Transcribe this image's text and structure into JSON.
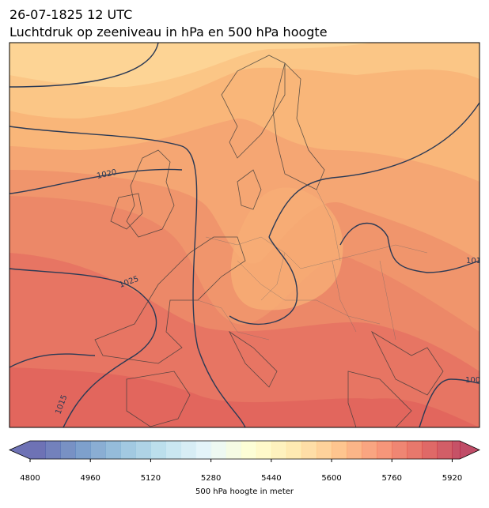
{
  "title": "26-07-1825 12 UTC",
  "subtitle": "Luchtdruk op zeeniveau in hPa en 500 hPa hoogte",
  "contour_labels": [
    "1020",
    "1025",
    "1015",
    "101",
    "100"
  ],
  "colorbar": {
    "label": "500 hPa hoogte in meter",
    "clim": [
      4800,
      5940
    ],
    "ticks": [
      4800,
      4960,
      5120,
      5280,
      5440,
      5600,
      5760,
      5920
    ],
    "level_step": 40,
    "alpha": 0.7,
    "colormap": [
      "#313695",
      "#4575b4",
      "#74add1",
      "#abd9e9",
      "#e0f3f8",
      "#ffffbf",
      "#fee090",
      "#fdae61",
      "#f46d43",
      "#d73027",
      "#a50026"
    ]
  }
}
